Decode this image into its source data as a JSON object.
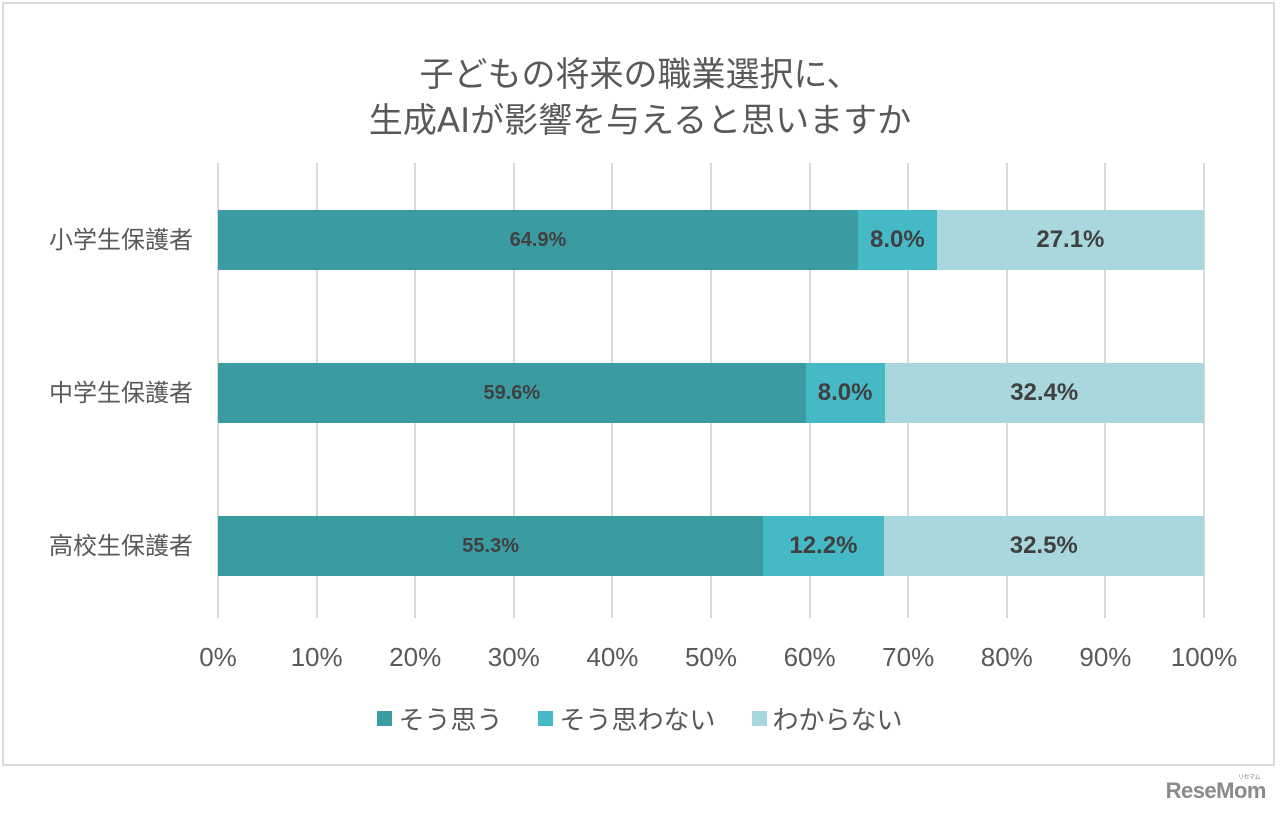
{
  "chart_data": {
    "type": "bar",
    "orientation": "horizontal",
    "stacked": "percent",
    "title": "子どもの将来の職業選択に、生成AIが影響を与えると思いますか",
    "title_lines": [
      "子どもの将来の職業選択に、",
      "生成AIが影響を与えると思いますか"
    ],
    "categories": [
      "小学生保護者",
      "中学生保護者",
      "高校生保護者"
    ],
    "series": [
      {
        "name": "そう思う",
        "color": "#3a9ca1",
        "values": [
          64.9,
          59.6,
          55.3
        ],
        "labels": [
          "64.9%",
          "59.6%",
          "55.3%"
        ]
      },
      {
        "name": "そう思わない",
        "color": "#45bac6",
        "values": [
          8.0,
          8.0,
          12.2
        ],
        "labels": [
          "8.0%",
          "8.0%",
          "12.2%"
        ]
      },
      {
        "name": "わからない",
        "color": "#a8d8dd",
        "values": [
          27.1,
          32.4,
          32.5
        ],
        "labels": [
          "27.1%",
          "32.4%",
          "32.5%"
        ]
      }
    ],
    "xlabel": "",
    "ylabel": "",
    "xlim": [
      0,
      100
    ],
    "x_ticks": [
      "0%",
      "10%",
      "20%",
      "30%",
      "40%",
      "50%",
      "60%",
      "70%",
      "80%",
      "90%",
      "100%"
    ],
    "grid": "vertical",
    "legend_position": "bottom"
  },
  "watermark": {
    "brand": "ReseMom",
    "ruby": "リセマム"
  }
}
